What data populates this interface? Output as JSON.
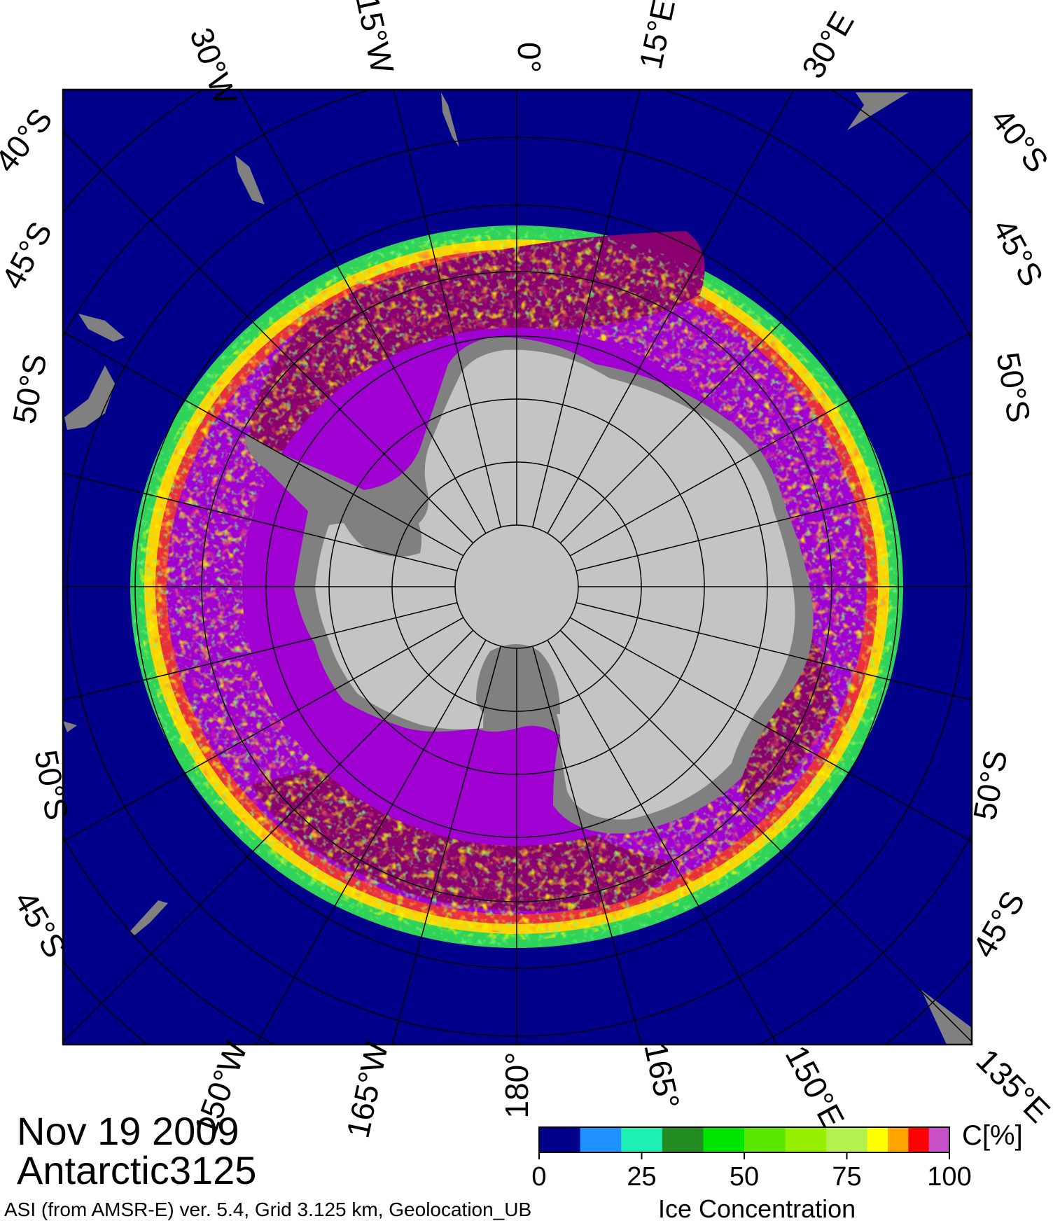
{
  "map": {
    "date": "Nov 19 2009",
    "dataset": "Antarctic3125",
    "footer": "ASI (from AMSR-E) ver. 5.4,  Grid 3.125 km, Geolocation_UB",
    "colorbar": {
      "title": "Ice Concentration",
      "unit": "C[%]",
      "ticks": [
        "0",
        "25",
        "50",
        "75",
        "100"
      ],
      "colors": [
        "#00008a",
        "#1e90ff",
        "#1ef0b4",
        "#228b22",
        "#00e600",
        "#5ae600",
        "#96f000",
        "#b4f050",
        "#ffff00",
        "#ffa500",
        "#ff0000",
        "#c850c8",
        "#a000d2"
      ]
    },
    "top_labels": [
      "30°W",
      "15°W",
      "0°",
      "15°E",
      "30°E"
    ],
    "bottom_labels": [
      "150°W",
      "165°W",
      "180°",
      "165°",
      "150°E",
      "135°E"
    ],
    "left_labels": [
      "40°S",
      "45°S",
      "50°S",
      "50°S",
      "45°S"
    ],
    "right_labels": [
      "40°S",
      "45°S",
      "50°S",
      "50°S",
      "45°S"
    ],
    "colors": {
      "ocean": "#00008a",
      "land": "#808080",
      "ice_shelf": "#c4c4c4",
      "pack_ice": "#8a006e",
      "high_ice": "#a000d2"
    }
  }
}
